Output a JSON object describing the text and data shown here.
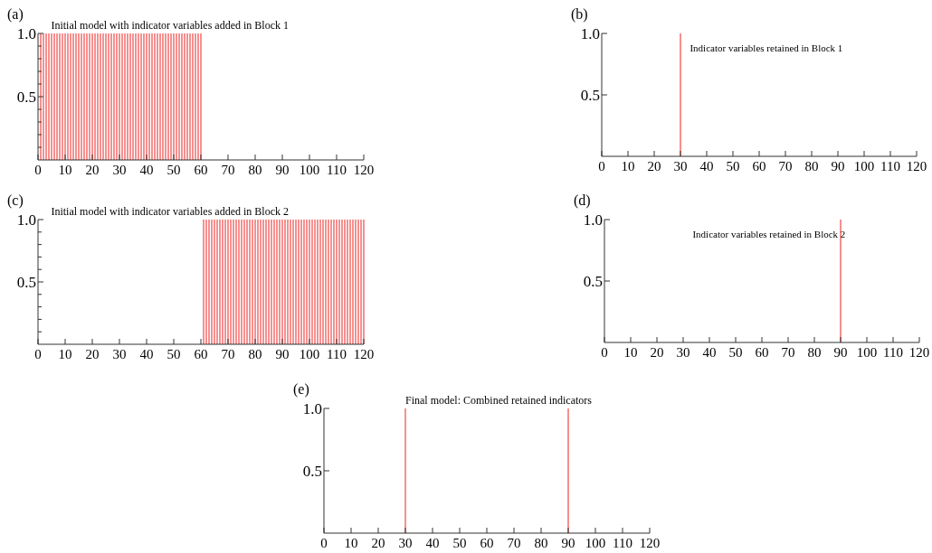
{
  "chart_data": [
    {
      "type": "bar",
      "title": "Initial model with indicator variables added in Block 1",
      "annotations": [
        "(a)"
      ],
      "x": [
        1,
        2,
        3,
        4,
        5,
        6,
        7,
        8,
        9,
        10,
        11,
        12,
        13,
        14,
        15,
        16,
        17,
        18,
        19,
        20,
        21,
        22,
        23,
        24,
        25,
        26,
        27,
        28,
        29,
        30,
        31,
        32,
        33,
        34,
        35,
        36,
        37,
        38,
        39,
        40,
        41,
        42,
        43,
        44,
        45,
        46,
        47,
        48,
        49,
        50,
        51,
        52,
        53,
        54,
        55,
        56,
        57,
        58,
        59,
        60
      ],
      "values": [
        1,
        1,
        1,
        1,
        1,
        1,
        1,
        1,
        1,
        1,
        1,
        1,
        1,
        1,
        1,
        1,
        1,
        1,
        1,
        1,
        1,
        1,
        1,
        1,
        1,
        1,
        1,
        1,
        1,
        1,
        1,
        1,
        1,
        1,
        1,
        1,
        1,
        1,
        1,
        1,
        1,
        1,
        1,
        1,
        1,
        1,
        1,
        1,
        1,
        1,
        1,
        1,
        1,
        1,
        1,
        1,
        1,
        1,
        1,
        1
      ],
      "color": "#f04848",
      "xlim": [
        0,
        120
      ],
      "xticks": [
        0,
        10,
        20,
        30,
        40,
        50,
        60,
        70,
        80,
        90,
        100,
        110,
        120
      ],
      "ylim": [
        0,
        1
      ],
      "yticks": [
        {
          "value": 0.1,
          "label": null
        },
        {
          "value": 0.2,
          "label": null
        },
        {
          "value": 0.3,
          "label": null
        },
        {
          "value": 0.4,
          "label": null
        },
        {
          "value": 0.5,
          "label": "0.5"
        },
        {
          "value": 0.6,
          "label": null
        },
        {
          "value": 0.7,
          "label": null
        },
        {
          "value": 0.8,
          "label": null
        },
        {
          "value": 0.9,
          "label": null
        },
        {
          "value": 1,
          "label": "1.0"
        }
      ]
    },
    {
      "type": "bar",
      "title": "Indicator variables retained in Block 1",
      "annotations": [
        "(b)"
      ],
      "x": [
        30
      ],
      "values": [
        1
      ],
      "color": "#f04848",
      "xlim": [
        0,
        120
      ],
      "xticks": [
        0,
        10,
        20,
        30,
        40,
        50,
        60,
        70,
        80,
        90,
        100,
        110,
        120
      ],
      "ylim": [
        0,
        1
      ],
      "yticks": [
        {
          "value": 0.5,
          "label": "0.5"
        },
        {
          "value": 1,
          "label": "1.0"
        }
      ]
    },
    {
      "type": "bar",
      "title": "Initial model with indicator variables added in Block 2",
      "annotations": [
        "(c)"
      ],
      "x": [
        61,
        62,
        63,
        64,
        65,
        66,
        67,
        68,
        69,
        70,
        71,
        72,
        73,
        74,
        75,
        76,
        77,
        78,
        79,
        80,
        81,
        82,
        83,
        84,
        85,
        86,
        87,
        88,
        89,
        90,
        91,
        92,
        93,
        94,
        95,
        96,
        97,
        98,
        99,
        100,
        101,
        102,
        103,
        104,
        105,
        106,
        107,
        108,
        109,
        110,
        111,
        112,
        113,
        114,
        115,
        116,
        117,
        118,
        119,
        120
      ],
      "values": [
        1,
        1,
        1,
        1,
        1,
        1,
        1,
        1,
        1,
        1,
        1,
        1,
        1,
        1,
        1,
        1,
        1,
        1,
        1,
        1,
        1,
        1,
        1,
        1,
        1,
        1,
        1,
        1,
        1,
        1,
        1,
        1,
        1,
        1,
        1,
        1,
        1,
        1,
        1,
        1,
        1,
        1,
        1,
        1,
        1,
        1,
        1,
        1,
        1,
        1,
        1,
        1,
        1,
        1,
        1,
        1,
        1,
        1,
        1,
        1
      ],
      "color": "#f04848",
      "xlim": [
        0,
        120
      ],
      "xticks": [
        0,
        10,
        20,
        30,
        40,
        50,
        60,
        70,
        80,
        90,
        100,
        110,
        120
      ],
      "ylim": [
        0,
        1
      ],
      "yticks": [
        {
          "value": 0.1,
          "label": null
        },
        {
          "value": 0.2,
          "label": null
        },
        {
          "value": 0.3,
          "label": null
        },
        {
          "value": 0.4,
          "label": null
        },
        {
          "value": 0.5,
          "label": "0.5"
        },
        {
          "value": 0.6,
          "label": null
        },
        {
          "value": 0.7,
          "label": null
        },
        {
          "value": 0.8,
          "label": null
        },
        {
          "value": 0.9,
          "label": null
        },
        {
          "value": 1,
          "label": "1.0"
        }
      ]
    },
    {
      "type": "bar",
      "title": "Indicator variables retained in Block 2",
      "annotations": [
        "(d)"
      ],
      "x": [
        90
      ],
      "values": [
        1
      ],
      "color": "#f04848",
      "xlim": [
        0,
        120
      ],
      "xticks": [
        0,
        10,
        20,
        30,
        40,
        50,
        60,
        70,
        80,
        90,
        100,
        110,
        120
      ],
      "ylim": [
        0,
        1
      ],
      "yticks": [
        {
          "value": 0.5,
          "label": "0.5"
        },
        {
          "value": 1,
          "label": "1.0"
        }
      ]
    },
    {
      "type": "bar",
      "title": "Final model: Combined retained indicators",
      "annotations": [
        "(e)"
      ],
      "x": [
        30,
        90
      ],
      "values": [
        1,
        1
      ],
      "color": "#f04848",
      "xlim": [
        0,
        120
      ],
      "xticks": [
        0,
        10,
        20,
        30,
        40,
        50,
        60,
        70,
        80,
        90,
        100,
        110,
        120
      ],
      "ylim": [
        0,
        1
      ],
      "yticks": [
        {
          "value": 0.5,
          "label": "0.5"
        },
        {
          "value": 1,
          "label": "1.0"
        }
      ]
    }
  ]
}
